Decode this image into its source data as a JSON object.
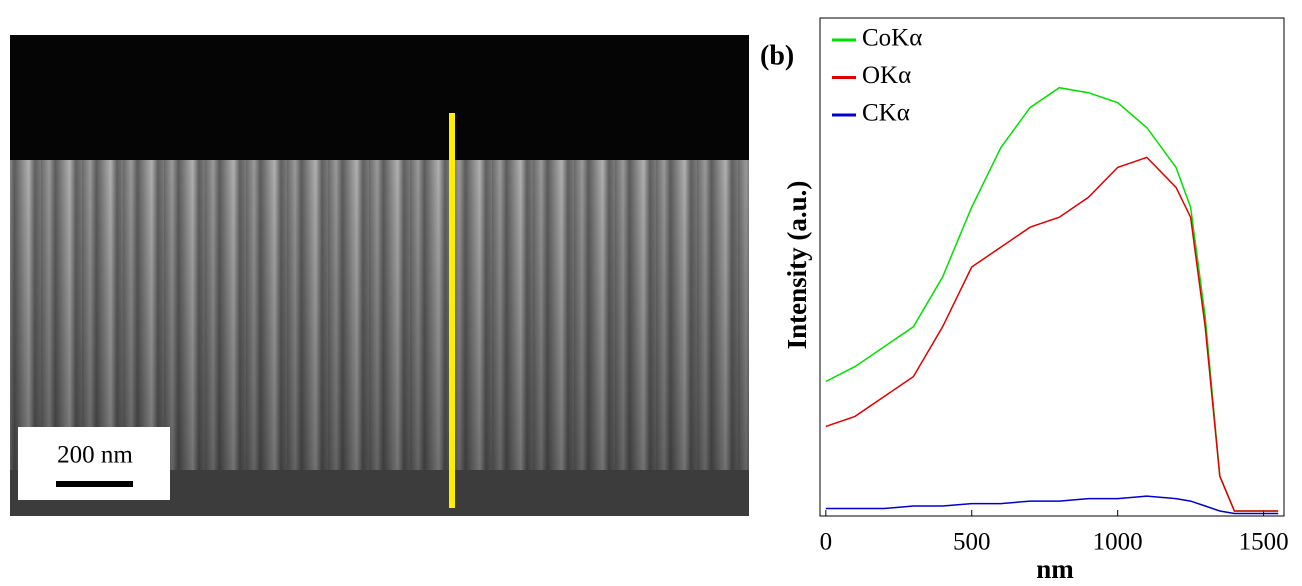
{
  "image": {
    "scale_label": "200 nm"
  },
  "chart_data": {
    "type": "line",
    "panel_label": "(b)",
    "x_label": "nm",
    "y_label": "Intensity (a.u.)",
    "x": [
      0,
      100,
      200,
      300,
      400,
      500,
      600,
      700,
      800,
      900,
      1000,
      1100,
      1200,
      1250,
      1300,
      1350,
      1400,
      1500,
      1550
    ],
    "series": [
      {
        "name": "CoKα",
        "color": "#00e000",
        "values": [
          27,
          30,
          34,
          38,
          48,
          62,
          74,
          82,
          86,
          85,
          83,
          78,
          70,
          62,
          40,
          8,
          1,
          1,
          1
        ]
      },
      {
        "name": "OKα",
        "color": "#e00000",
        "values": [
          18,
          20,
          24,
          28,
          38,
          50,
          54,
          58,
          60,
          64,
          70,
          72,
          66,
          60,
          38,
          8,
          1,
          1,
          1
        ]
      },
      {
        "name": "CKα",
        "color": "#0000d0",
        "values": [
          1.5,
          1.5,
          1.5,
          2,
          2,
          2.5,
          2.5,
          3,
          3,
          3.5,
          3.5,
          4,
          3.5,
          3,
          2,
          1,
          0.5,
          0.5,
          0.5
        ]
      }
    ],
    "xlim": [
      -20,
      1570
    ],
    "ylim": [
      0,
      100
    ],
    "xticks": [
      0,
      500,
      1000,
      1500
    ]
  }
}
